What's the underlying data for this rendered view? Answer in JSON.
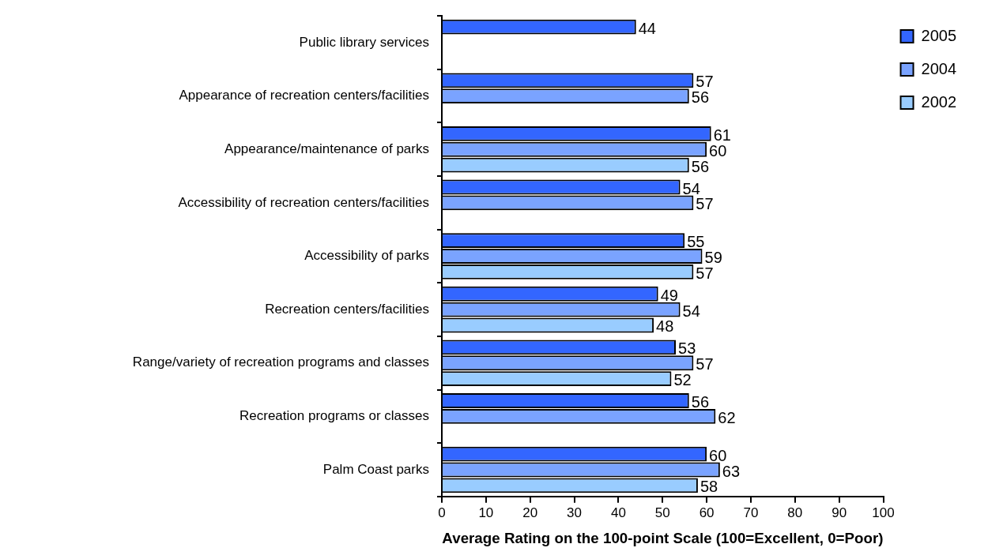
{
  "chart_data": {
    "type": "bar",
    "orientation": "horizontal",
    "xlabel": "Average Rating on the 100-point Scale (100=Excellent, 0=Poor)",
    "categories": [
      "Public library services",
      "Appearance of recreation centers/facilities",
      "Appearance/maintenance of parks",
      "Accessibility of recreation centers/facilities",
      "Accessibility of parks",
      "Recreation centers/facilities",
      "Range/variety of recreation programs and classes",
      "Recreation programs or classes",
      "Palm Coast parks"
    ],
    "series": [
      {
        "name": "2005",
        "color": "#3366ff",
        "values": [
          44,
          57,
          61,
          54,
          55,
          49,
          53,
          56,
          60
        ]
      },
      {
        "name": "2004",
        "color": "#7aa3ff",
        "values": [
          null,
          56,
          60,
          57,
          59,
          54,
          57,
          62,
          63
        ]
      },
      {
        "name": "2002",
        "color": "#99ccff",
        "values": [
          null,
          null,
          56,
          null,
          57,
          48,
          52,
          null,
          58
        ]
      }
    ],
    "xlim": [
      0,
      100
    ],
    "xticks": [
      0,
      10,
      20,
      30,
      40,
      50,
      60,
      70,
      80,
      90,
      100
    ],
    "data_labels": true,
    "legend": "top right",
    "grid": false
  }
}
